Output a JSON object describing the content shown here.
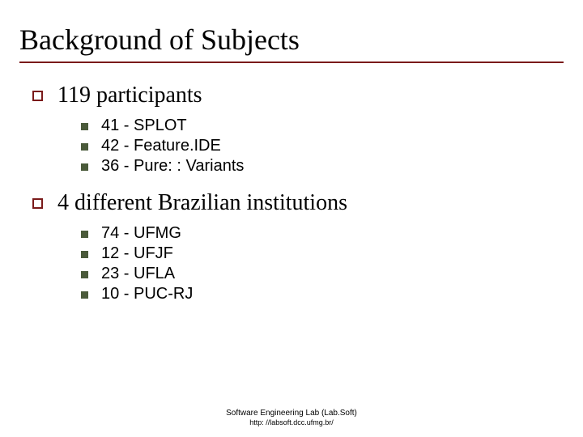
{
  "colors": {
    "title_underline": "#7a1a1a",
    "lvl1_bullet_border": "#7a1a1a",
    "lvl2_bullet_fill": "#4a5a3a",
    "text": "#000000",
    "background": "#ffffff"
  },
  "title": "Background of Subjects",
  "sections": [
    {
      "heading": "119 participants",
      "items": [
        "41 - SPLOT",
        "42 - Feature.IDE",
        "36 - Pure: : Variants"
      ]
    },
    {
      "heading": "4 different Brazilian institutions",
      "items": [
        "74 - UFMG",
        "12 - UFJF",
        "23 - UFLA",
        "10 - PUC-RJ"
      ]
    }
  ],
  "footer": {
    "line1": "Software Engineering Lab (Lab.Soft)",
    "line2": "http: //labsoft.dcc.ufmg.br/"
  }
}
